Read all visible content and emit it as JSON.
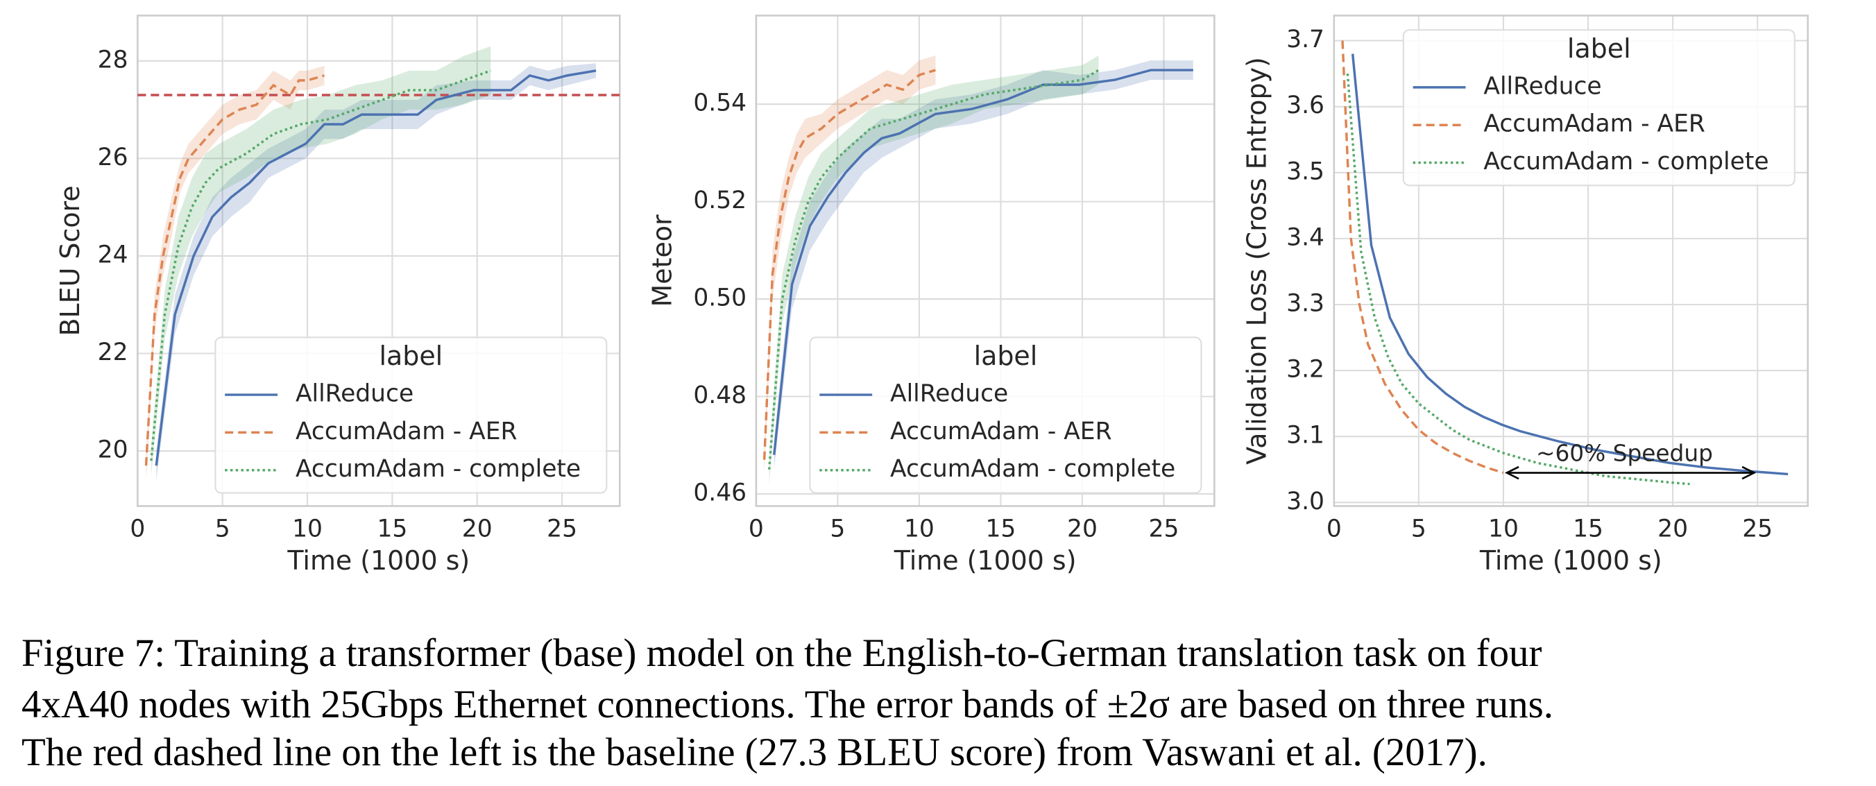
{
  "chart_data": [
    {
      "type": "line",
      "xlabel": "Time (1000 s)",
      "ylabel": "BLEU Score",
      "xlim": [
        0,
        28.4
      ],
      "ylim": [
        18.87,
        28.93
      ],
      "xticks": [
        0,
        5,
        10,
        15,
        20,
        25
      ],
      "yticks": [
        20,
        22,
        24,
        26,
        28
      ],
      "grid": true,
      "legend": "lower right",
      "legend_title": "label",
      "baseline": {
        "value": 27.3,
        "color": "#c44e52"
      },
      "series": [
        {
          "name": "AllReduce",
          "color": "#4c72b0",
          "dash": "solid",
          "x": [
            1.1,
            2.2,
            3.3,
            4.4,
            5.5,
            6.6,
            7.7,
            8.8,
            9.9,
            11,
            12.1,
            13.2,
            14.3,
            16.5,
            17.6,
            19.8,
            22,
            23.1,
            24.2,
            25.3,
            27
          ],
          "values": [
            19.7,
            22.8,
            24.0,
            24.8,
            25.2,
            25.5,
            25.9,
            26.1,
            26.3,
            26.7,
            26.7,
            26.9,
            26.9,
            26.9,
            27.2,
            27.4,
            27.4,
            27.7,
            27.6,
            27.7,
            27.8
          ],
          "errors": [
            0.3,
            0.4,
            0.4,
            0.4,
            0.4,
            0.4,
            0.3,
            0.3,
            0.3,
            0.3,
            0.3,
            0.3,
            0.3,
            0.3,
            0.3,
            0.2,
            0.2,
            0.2,
            0.2,
            0.2,
            0.15
          ]
        },
        {
          "name": "AccumAdam - AER",
          "color": "#dd8452",
          "dash": "dashed",
          "x": [
            0.5,
            1,
            1.5,
            2,
            2.5,
            3,
            4,
            5,
            6,
            7,
            8,
            9,
            9.5,
            10,
            11
          ],
          "values": [
            19.7,
            22.8,
            24.0,
            24.8,
            25.6,
            26.0,
            26.4,
            26.8,
            27.0,
            27.1,
            27.5,
            27.3,
            27.6,
            27.6,
            27.7
          ],
          "errors": [
            0.3,
            0.4,
            0.4,
            0.4,
            0.3,
            0.3,
            0.3,
            0.3,
            0.3,
            0.3,
            0.3,
            0.3,
            0.2,
            0.2,
            0.2
          ]
        },
        {
          "name": "AccumAdam - complete",
          "color": "#55a868",
          "dash": "dotted",
          "x": [
            0.8,
            1.6,
            2.4,
            3.2,
            4,
            4.8,
            6.4,
            8,
            9.6,
            11.2,
            12.8,
            14.4,
            16,
            17.6,
            19.2,
            20.8
          ],
          "values": [
            19.8,
            22.8,
            24.2,
            25.0,
            25.5,
            25.8,
            26.1,
            26.5,
            26.7,
            26.8,
            27.0,
            27.2,
            27.4,
            27.4,
            27.6,
            27.8
          ],
          "errors": [
            0.3,
            0.5,
            0.6,
            0.6,
            0.6,
            0.5,
            0.5,
            0.5,
            0.5,
            0.5,
            0.5,
            0.4,
            0.4,
            0.4,
            0.5,
            0.5
          ]
        }
      ]
    },
    {
      "type": "line",
      "xlabel": "Time (1000 s)",
      "ylabel": "Meteor",
      "xlim": [
        0,
        28.1
      ],
      "ylim": [
        0.4575,
        0.5582
      ],
      "xticks": [
        0,
        5,
        10,
        15,
        20,
        25
      ],
      "yticks": [
        0.46,
        0.48,
        {
          "value": 0.5,
          "label": "0.50"
        },
        0.52,
        0.54
      ],
      "grid": true,
      "legend": "lower right",
      "legend_title": "label",
      "series": [
        {
          "name": "AllReduce",
          "color": "#4c72b0",
          "dash": "solid",
          "x": [
            1.1,
            2.2,
            3.3,
            4.4,
            5.5,
            6.6,
            7.7,
            8.8,
            9.9,
            11,
            13.2,
            15.4,
            17.6,
            19.8,
            22,
            24.2,
            26.8
          ],
          "values": [
            0.468,
            0.503,
            0.515,
            0.521,
            0.526,
            0.53,
            0.533,
            0.534,
            0.536,
            0.538,
            0.539,
            0.541,
            0.544,
            0.544,
            0.545,
            0.547,
            0.547
          ],
          "errors": [
            0.003,
            0.005,
            0.005,
            0.005,
            0.005,
            0.004,
            0.004,
            0.003,
            0.003,
            0.003,
            0.003,
            0.003,
            0.003,
            0.002,
            0.002,
            0.002,
            0.002
          ]
        },
        {
          "name": "AccumAdam - AER",
          "color": "#dd8452",
          "dash": "dashed",
          "x": [
            0.5,
            1,
            1.5,
            2,
            2.5,
            3,
            4,
            5,
            6,
            7,
            8,
            9,
            10,
            11
          ],
          "values": [
            0.467,
            0.505,
            0.517,
            0.525,
            0.53,
            0.533,
            0.535,
            0.538,
            0.54,
            0.542,
            0.544,
            0.543,
            0.546,
            0.547
          ],
          "errors": [
            0.003,
            0.005,
            0.005,
            0.004,
            0.004,
            0.004,
            0.003,
            0.003,
            0.003,
            0.003,
            0.003,
            0.003,
            0.003,
            0.003
          ]
        },
        {
          "name": "AccumAdam - complete",
          "color": "#55a868",
          "dash": "dotted",
          "x": [
            0.8,
            1.6,
            2.4,
            3.2,
            4,
            5,
            6,
            7,
            8,
            10,
            12,
            14,
            16,
            18,
            20,
            21
          ],
          "values": [
            0.465,
            0.5,
            0.512,
            0.52,
            0.525,
            0.529,
            0.532,
            0.535,
            0.536,
            0.538,
            0.54,
            0.542,
            0.543,
            0.544,
            0.545,
            0.547
          ],
          "errors": [
            0.003,
            0.005,
            0.005,
            0.005,
            0.005,
            0.004,
            0.004,
            0.004,
            0.004,
            0.004,
            0.004,
            0.003,
            0.003,
            0.003,
            0.003,
            0.003
          ]
        }
      ]
    },
    {
      "type": "line",
      "xlabel": "Time (1000 s)",
      "ylabel": "Validation Loss (Cross Entropy)",
      "xlim": [
        0,
        27.97
      ],
      "ylim": [
        2.9946,
        3.738
      ],
      "xticks": [
        0,
        5,
        10,
        15,
        20,
        25
      ],
      "yticks": [
        {
          "value": 3,
          "label": "3.0"
        },
        3.1,
        3.2,
        3.3,
        3.4,
        3.5,
        3.6,
        3.7
      ],
      "grid": true,
      "legend": "upper right",
      "legend_title": "label",
      "annotation": {
        "text": "~60% Speedup",
        "x": [
          10.2,
          24.8
        ],
        "y": 3.045
      },
      "series": [
        {
          "name": "AllReduce",
          "color": "#4c72b0",
          "dash": "solid",
          "x": [
            1.1,
            2.2,
            3.3,
            4.4,
            5.5,
            6.6,
            7.7,
            8.8,
            9.9,
            11,
            13.2,
            15.4,
            17.6,
            19.8,
            22,
            24.2,
            26.8
          ],
          "values": [
            3.68,
            3.39,
            3.28,
            3.225,
            3.19,
            3.165,
            3.145,
            3.13,
            3.118,
            3.108,
            3.093,
            3.08,
            3.07,
            3.06,
            3.053,
            3.048,
            3.043
          ]
        },
        {
          "name": "AccumAdam - AER",
          "color": "#dd8452",
          "dash": "dashed",
          "x": [
            0.5,
            1,
            1.5,
            2,
            3,
            4,
            5,
            6,
            7,
            8,
            9,
            10
          ],
          "values": [
            3.7,
            3.4,
            3.3,
            3.24,
            3.18,
            3.14,
            3.11,
            3.09,
            3.075,
            3.063,
            3.053,
            3.045
          ]
        },
        {
          "name": "AccumAdam - complete",
          "color": "#55a868",
          "dash": "dotted",
          "x": [
            0.8,
            1.6,
            2.4,
            3.2,
            4,
            5,
            6,
            7,
            8,
            10,
            12,
            14,
            16,
            18,
            20,
            21
          ],
          "values": [
            3.65,
            3.38,
            3.28,
            3.22,
            3.18,
            3.15,
            3.13,
            3.11,
            3.095,
            3.075,
            3.06,
            3.05,
            3.04,
            3.035,
            3.03,
            3.028
          ]
        }
      ]
    }
  ],
  "caption": [
    "Figure 7: Training a transformer (base) model on the English-to-German translation task on four",
    "4xA40 nodes with 25Gbps Ethernet connections. The error bands of ±2σ are based on three runs.",
    "The red dashed line on the left is the baseline (27.3 BLEU score) from Vaswani et al. (2017)."
  ]
}
